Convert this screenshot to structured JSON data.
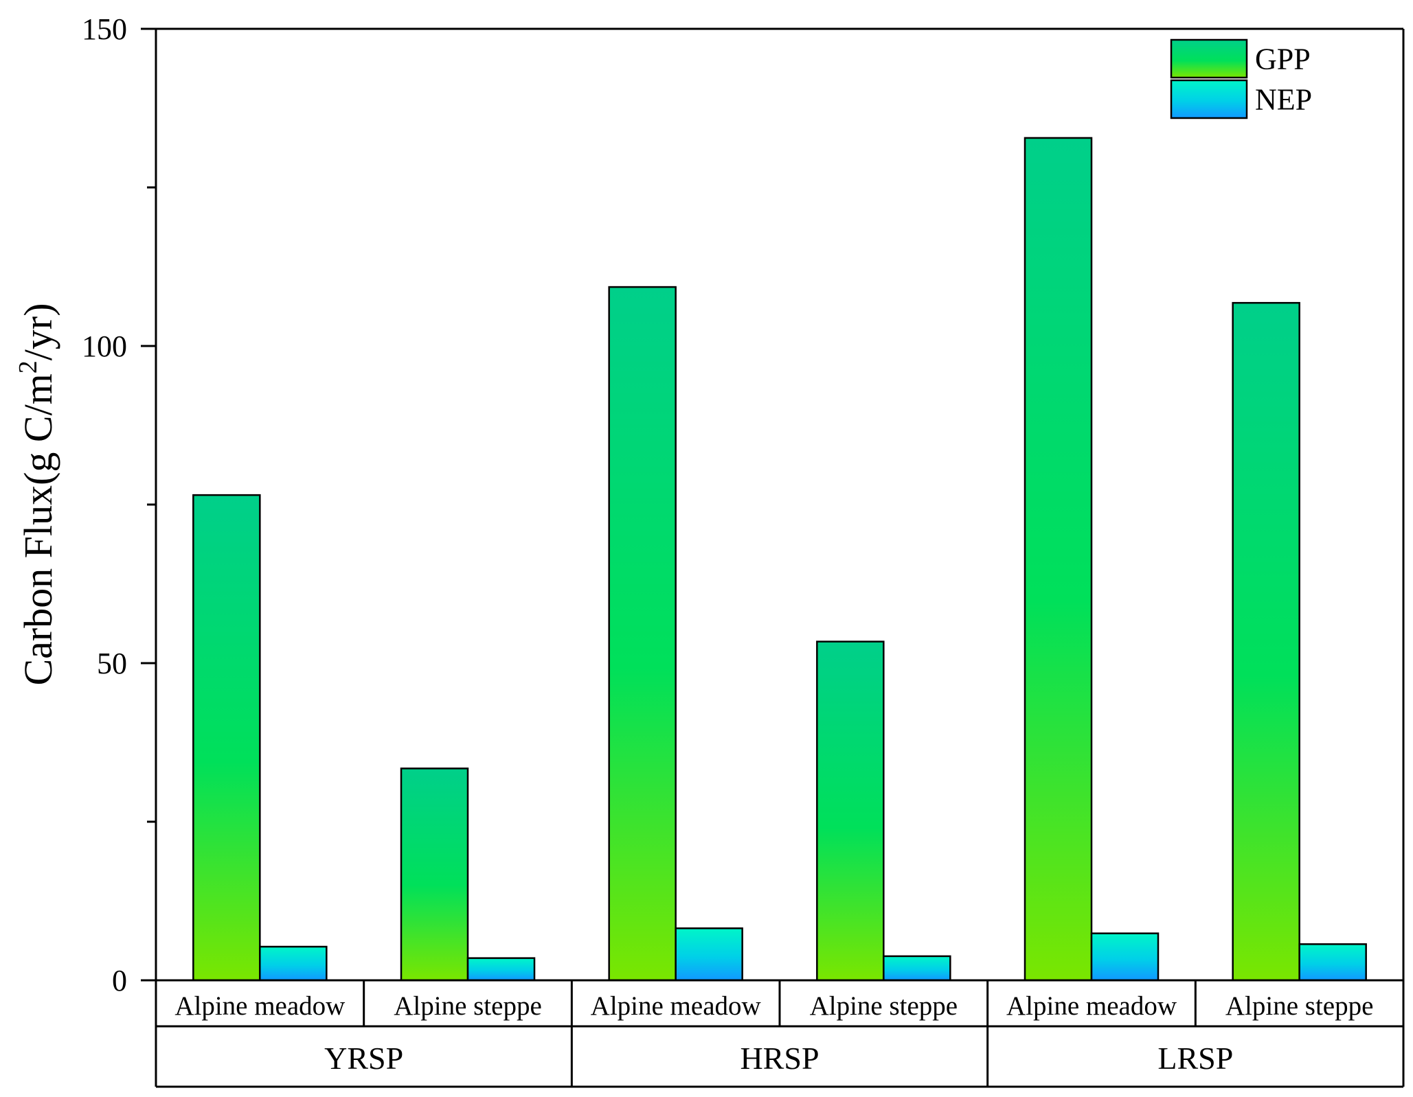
{
  "chart_data": {
    "type": "bar",
    "title": "",
    "xlabel": "",
    "ylabel": {
      "main": "Carbon Flux(g C/m",
      "sup": "2",
      "tail": "/yr)"
    },
    "ylim": [
      0,
      150
    ],
    "yticks": [
      0,
      50,
      100,
      150
    ],
    "grid": false,
    "legend_position": "top-right",
    "groups": [
      {
        "label": "YRSP",
        "categories": [
          "Alpine meadow",
          "Alpine steppe"
        ]
      },
      {
        "label": "HRSP",
        "categories": [
          "Alpine meadow",
          "Alpine steppe"
        ]
      },
      {
        "label": "LRSP",
        "categories": [
          "Alpine meadow",
          "Alpine steppe"
        ]
      }
    ],
    "series": [
      {
        "name": "GPP",
        "values": [
          76.5,
          33.4,
          109.3,
          53.4,
          132.8,
          106.8
        ]
      },
      {
        "name": "NEP",
        "values": [
          5.3,
          3.5,
          8.2,
          3.8,
          7.4,
          5.7
        ]
      }
    ]
  }
}
